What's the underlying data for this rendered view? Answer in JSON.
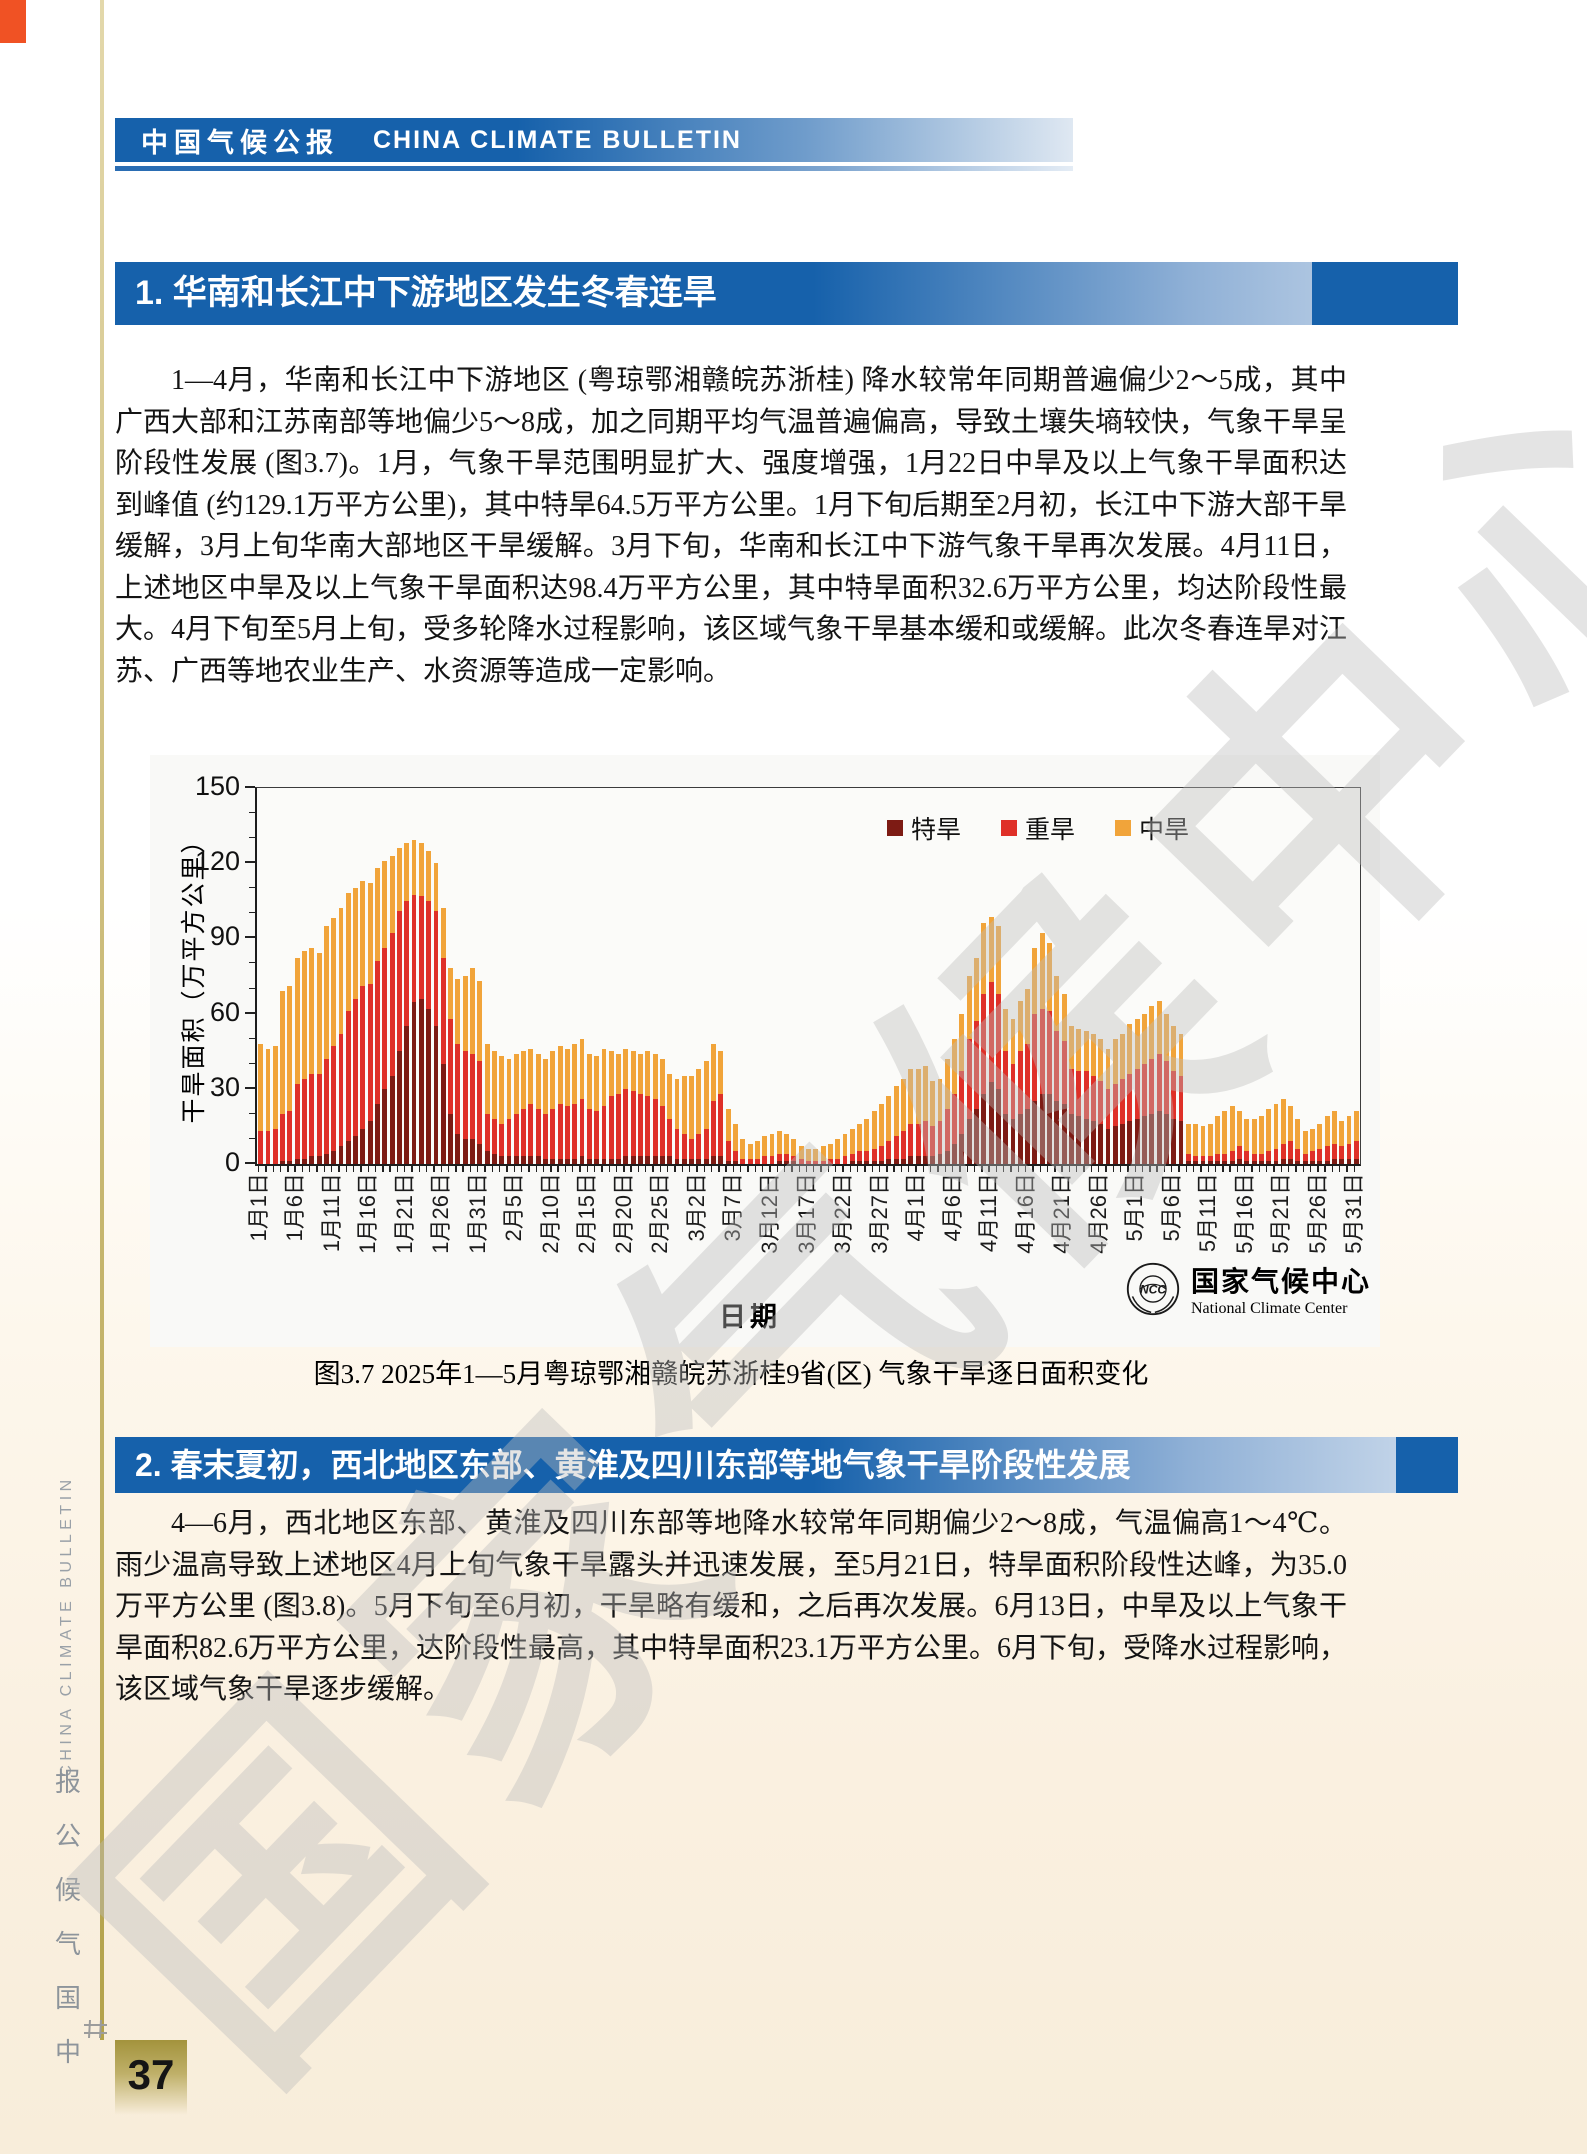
{
  "page": {
    "header": {
      "cn": "中国气候公报",
      "en": "CHINA CLIMATE BULLETIN"
    },
    "sidebar": {
      "cn": "中国气候公报",
      "en": "CHINA CLIMATE BULLETIN"
    },
    "page_number": "37"
  },
  "section1": {
    "title": "1. 华南和长江中下游地区发生冬春连旱",
    "body": "1—4月，华南和长江中下游地区 (粤琼鄂湘赣皖苏浙桂) 降水较常年同期普遍偏少2～5成，其中广西大部和江苏南部等地偏少5～8成，加之同期平均气温普遍偏高，导致土壤失墒较快，气象干旱呈阶段性发展 (图3.7)。1月，气象干旱范围明显扩大、强度增强，1月22日中旱及以上气象干旱面积达到峰值 (约129.1万平方公里)，其中特旱64.5万平方公里。1月下旬后期至2月初，长江中下游大部干旱缓解，3月上旬华南大部地区干旱缓解。3月下旬，华南和长江中下游气象干旱再次发展。4月11日，上述地区中旱及以上气象干旱面积达98.4万平方公里，其中特旱面积32.6万平方公里，均达阶段性最大。4月下旬至5月上旬，受多轮降水过程影响，该区域气象干旱基本缓和或缓解。此次冬春连旱对江苏、广西等地农业生产、水资源等造成一定影响。"
  },
  "section2": {
    "title": "2. 春末夏初，西北地区东部、黄淮及四川东部等地气象干旱阶段性发展",
    "body": "4—6月，西北地区东部、黄淮及四川东部等地降水较常年同期偏少2～8成，气温偏高1～4℃。雨少温高导致上述地区4月上旬气象干旱露头并迅速发展，至5月21日，特旱面积阶段性达峰，为35.0万平方公里 (图3.8)。5月下旬至6月初，干旱略有缓和，之后再次发展。6月13日，中旱及以上气象干旱面积82.6万平方公里，达阶段性最高，其中特旱面积23.1万平方公里。6月下旬，受降水过程影响，该区域气象干旱逐步缓解。"
  },
  "figure": {
    "caption": "图3.7  2025年1—5月粤琼鄂湘赣皖苏浙桂9省(区) 气象干旱逐日面积变化",
    "logo": {
      "cn": "国家气候中心",
      "en": "National Climate Center",
      "abbr": "NCC"
    }
  },
  "watermark": "国家气候中心",
  "chart_data": {
    "type": "bar",
    "stacked": true,
    "title": "",
    "xlabel": "日期",
    "ylabel": "干旱面积（万平方公里）",
    "ylim": [
      0,
      150
    ],
    "yticks": [
      0,
      30,
      60,
      90,
      120,
      150
    ],
    "days": 151,
    "x_tick_step": 5,
    "x_tick_labels": [
      "1月1日",
      "1月6日",
      "1月11日",
      "1月16日",
      "1月21日",
      "1月26日",
      "1月31日",
      "2月5日",
      "2月10日",
      "2月15日",
      "2月20日",
      "2月25日",
      "3月2日",
      "3月7日",
      "3月12日",
      "3月17日",
      "3月22日",
      "3月27日",
      "4月1日",
      "4月6日",
      "4月11日",
      "4月16日",
      "4月21日",
      "4月26日",
      "5月1日",
      "5月6日",
      "5月11日",
      "5月16日",
      "5月21日",
      "5月26日",
      "5月31日"
    ],
    "legend_position": "top-center",
    "grid": false,
    "series": [
      {
        "name": "特旱",
        "color": "#7d1b14",
        "values": [
          0,
          0,
          0,
          1,
          1,
          2,
          2,
          3,
          3,
          4,
          5,
          7,
          9,
          11,
          14,
          17,
          24,
          30,
          35,
          45,
          55,
          64.5,
          66,
          62,
          55,
          40,
          20,
          12,
          10,
          10,
          8,
          5,
          4,
          3,
          3,
          3,
          3,
          3,
          3,
          2,
          2,
          2,
          2,
          2,
          3,
          2,
          2,
          2,
          2,
          2,
          3,
          3,
          3,
          3,
          3,
          3,
          3,
          2,
          2,
          2,
          2,
          2,
          3,
          3,
          1,
          1,
          0,
          0,
          0,
          0,
          0,
          1,
          1,
          1,
          0,
          0,
          0,
          0,
          0,
          0,
          0,
          1,
          1,
          1,
          1,
          1,
          2,
          2,
          2,
          3,
          3,
          3,
          3,
          4,
          5,
          8,
          12,
          18,
          22,
          28,
          32.6,
          30,
          20,
          18,
          20,
          22,
          25,
          28,
          28,
          25,
          24,
          20,
          19,
          18,
          17,
          16,
          14,
          15,
          16,
          17,
          18,
          19,
          20,
          21,
          20,
          18,
          17,
          1,
          1,
          1,
          1,
          1,
          1,
          1,
          2,
          1,
          1,
          1,
          1,
          1,
          2,
          2,
          1,
          1,
          1,
          1,
          1,
          2,
          2,
          2,
          2
        ]
      },
      {
        "name": "重旱",
        "color": "#df3028",
        "values": [
          13,
          13,
          14,
          19,
          20,
          30,
          32,
          33,
          33,
          38,
          42,
          45,
          52,
          55,
          57,
          55,
          57,
          56,
          57,
          56,
          50,
          43,
          41,
          43,
          46,
          42,
          38,
          36,
          35,
          34,
          33,
          15,
          14,
          13,
          15,
          17,
          19,
          21,
          19,
          18,
          20,
          22,
          21,
          22,
          23,
          20,
          19,
          21,
          25,
          26,
          27,
          26,
          25,
          24,
          23,
          20,
          15,
          12,
          10,
          8,
          10,
          12,
          22,
          25,
          8,
          4,
          2,
          2,
          2,
          3,
          3,
          3,
          3,
          2,
          2,
          1,
          1,
          1,
          2,
          2,
          3,
          3,
          4,
          4,
          5,
          6,
          7,
          9,
          11,
          13,
          13,
          14,
          12,
          13,
          17,
          20,
          25,
          32,
          35,
          40,
          40,
          38,
          25,
          22,
          25,
          26,
          35,
          34,
          33,
          28,
          25,
          18,
          18,
          19,
          18,
          17,
          16,
          17,
          18,
          19,
          20,
          21,
          22,
          23,
          21,
          19,
          18,
          3,
          2,
          2,
          2,
          3,
          3,
          4,
          5,
          4,
          3,
          3,
          4,
          5,
          6,
          7,
          5,
          3,
          4,
          5,
          6,
          6,
          5,
          6,
          7
        ]
      },
      {
        "name": "中旱",
        "color": "#f1a43a",
        "values": [
          35,
          33,
          33,
          49,
          50,
          50,
          51,
          50,
          48,
          53,
          51,
          50,
          47,
          44,
          42,
          40,
          37,
          35,
          31,
          25,
          23,
          21.6,
          21,
          20,
          19,
          20,
          20,
          26,
          30,
          34,
          32,
          28,
          27,
          27,
          24,
          24,
          23,
          22,
          22,
          22,
          23,
          23,
          23,
          24,
          24,
          22,
          22,
          23,
          18,
          16,
          16,
          16,
          16,
          18,
          18,
          19,
          18,
          20,
          23,
          25,
          26,
          27,
          23,
          17,
          13,
          11,
          8,
          6,
          7,
          8,
          9,
          9,
          8,
          7,
          5,
          5,
          5,
          6,
          6,
          8,
          9,
          10,
          11,
          13,
          15,
          17,
          18,
          20,
          21,
          22,
          22,
          22,
          18,
          17,
          20,
          22,
          23,
          25,
          25,
          28,
          25.8,
          27,
          17,
          18,
          20,
          22,
          26,
          30,
          27,
          22,
          19,
          17,
          17,
          16,
          17,
          17,
          16,
          18,
          18,
          20,
          20,
          20,
          21,
          21,
          19,
          18,
          17,
          12,
          13,
          12,
          13,
          15,
          17,
          18,
          14,
          13,
          14,
          15,
          17,
          18,
          18,
          14,
          12,
          9,
          9,
          10,
          12,
          13,
          10,
          11,
          12
        ]
      }
    ]
  }
}
